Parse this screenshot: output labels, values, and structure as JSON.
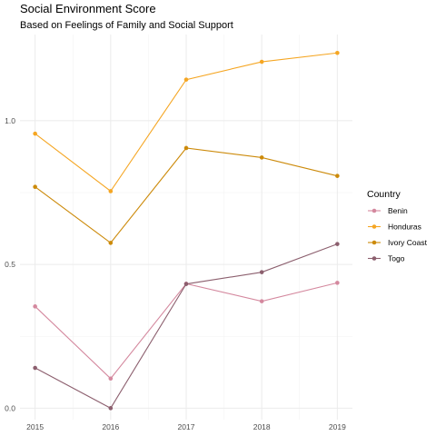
{
  "chart_data": {
    "type": "line",
    "title": "Social Environment Score",
    "subtitle": "Based on Feelings of Family and Social Support",
    "xlabel": "",
    "ylabel": "",
    "x": [
      2015,
      2016,
      2017,
      2018,
      2019
    ],
    "x_tick_labels": [
      "2015",
      "2016",
      "2017",
      "2018",
      "2019"
    ],
    "y_ticks": [
      0.0,
      0.5,
      1.0
    ],
    "y_tick_labels": [
      "0.0",
      "0.5",
      "1.0"
    ],
    "ylim": [
      -0.04,
      1.3
    ],
    "grid": true,
    "legend": {
      "title": "Country",
      "placement": "right"
    },
    "series": [
      {
        "name": "Benin",
        "color": "#d4889e",
        "values": [
          0.354,
          0.103,
          0.433,
          0.372,
          0.436
        ]
      },
      {
        "name": "Honduras",
        "color": "#f5a623",
        "values": [
          0.955,
          0.755,
          1.143,
          1.205,
          1.236
        ]
      },
      {
        "name": "Ivory Coast",
        "color": "#cc8a0a",
        "values": [
          0.77,
          0.575,
          0.905,
          0.872,
          0.808
        ]
      },
      {
        "name": "Togo",
        "color": "#8c5f6e",
        "values": [
          0.14,
          0.0,
          0.432,
          0.473,
          0.571
        ]
      }
    ]
  }
}
